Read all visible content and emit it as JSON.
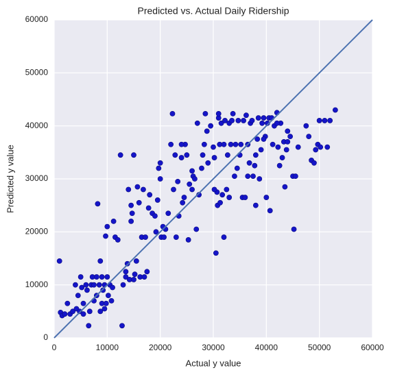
{
  "chart_data": {
    "type": "scatter",
    "title": "Predicted vs. Actual Daily Ridership",
    "x_label": "Actual y value",
    "y_label": "Predicted y value",
    "color": "#1515c8",
    "x": [
      1000,
      1200,
      1500,
      2000,
      2500,
      3000,
      3500,
      4000,
      4200,
      4500,
      4800,
      5000,
      5200,
      5500,
      5500,
      6000,
      6200,
      6500,
      6700,
      7000,
      7200,
      7500,
      7500,
      8000,
      8000,
      8200,
      8500,
      8700,
      8700,
      9000,
      9000,
      9200,
      9500,
      9500,
      9700,
      9800,
      10000,
      10000,
      10200,
      10500,
      10800,
      11000,
      11200,
      11500,
      12000,
      12500,
      12800,
      13000,
      13500,
      13500,
      13800,
      14000,
      14200,
      14500,
      14500,
      14700,
      15000,
      15000,
      15200,
      15500,
      15700,
      16000,
      16200,
      16500,
      16800,
      17000,
      17200,
      17500,
      17800,
      18000,
      18500,
      19000,
      19200,
      19500,
      19700,
      20000,
      20200,
      20500,
      20700,
      21000,
      21500,
      22000,
      22300,
      22500,
      22800,
      23000,
      23300,
      23500,
      24000,
      24200,
      24500,
      24700,
      25000,
      25300,
      25500,
      26000,
      26200,
      26500,
      26800,
      27000,
      27300,
      27800,
      28000,
      28300,
      28500,
      28800,
      29000,
      29500,
      30000,
      30200,
      30500,
      30700,
      30800,
      31000,
      31000,
      31200,
      31300,
      31500,
      31700,
      32000,
      32000,
      32200,
      32500,
      32700,
      33000,
      33300,
      33500,
      33700,
      34000,
      34200,
      34500,
      34700,
      35000,
      35200,
      35500,
      35700,
      36000,
      36200,
      36500,
      36800,
      37000,
      37300,
      37500,
      37800,
      38000,
      38000,
      38300,
      38500,
      38700,
      39000,
      39200,
      39500,
      39800,
      40000,
      40200,
      40500,
      40700,
      41000,
      41200,
      41500,
      42000,
      42200,
      42500,
      42700,
      43000,
      43300,
      43500,
      43800,
      44000,
      44500,
      45000,
      45200,
      45500,
      47500,
      48000,
      48500,
      49000,
      49300,
      49700,
      50000,
      50200,
      51000,
      51500,
      52000,
      53000,
      30200,
      33000,
      36500,
      39500,
      42000,
      44000,
      46000,
      24000,
      26000,
      20000
    ],
    "values": [
      14500,
      4800,
      4200,
      4500,
      6500,
      4500,
      5000,
      10000,
      5500,
      8000,
      5000,
      11500,
      9500,
      6500,
      4500,
      10000,
      9000,
      2300,
      5000,
      10000,
      11500,
      10000,
      7000,
      11500,
      8000,
      25300,
      10000,
      14500,
      5000,
      11500,
      6500,
      9000,
      10000,
      5500,
      19200,
      6500,
      11500,
      21000,
      8000,
      10000,
      7000,
      9500,
      22000,
      19000,
      18500,
      34500,
      2300,
      10000,
      12500,
      11500,
      14000,
      28000,
      11000,
      25000,
      22000,
      23500,
      34500,
      11000,
      12000,
      14500,
      28500,
      25500,
      11500,
      19000,
      28000,
      11500,
      19000,
      12500,
      24500,
      27000,
      23500,
      23000,
      20000,
      26000,
      32000,
      33000,
      19000,
      21000,
      19000,
      20500,
      23500,
      36500,
      42300,
      28000,
      34500,
      19000,
      29500,
      23000,
      34000,
      25500,
      26500,
      36500,
      34500,
      18500,
      29000,
      28000,
      30500,
      30000,
      20500,
      40500,
      27000,
      32000,
      34500,
      36500,
      42300,
      39000,
      33000,
      40000,
      36000,
      34000,
      16000,
      27500,
      25000,
      41500,
      42300,
      36500,
      25500,
      40500,
      27000,
      19000,
      36500,
      41000,
      28000,
      34500,
      40500,
      36500,
      41000,
      42300,
      30500,
      36500,
      32000,
      41000,
      34500,
      36500,
      26500,
      41000,
      26500,
      42000,
      36500,
      33000,
      40500,
      41000,
      30500,
      32500,
      25000,
      34500,
      37500,
      41500,
      30000,
      35500,
      40500,
      41500,
      38000,
      26500,
      40500,
      41500,
      24000,
      41500,
      36500,
      40000,
      42500,
      36000,
      32500,
      40500,
      34000,
      37000,
      28500,
      35500,
      39000,
      38000,
      30500,
      20500,
      30500,
      40000,
      38000,
      33500,
      33000,
      35500,
      36500,
      41000,
      36000,
      41000,
      36000,
      41000,
      43000,
      28000,
      26500,
      30500,
      37500,
      40500,
      37000,
      36000,
      36500,
      31500,
      30000
    ],
    "reference_line": {
      "x": [
        0,
        60000
      ],
      "y": [
        0,
        60000
      ],
      "color": "#4c72b0"
    },
    "xlim": [
      0,
      60000
    ],
    "ylim": [
      0,
      60000
    ],
    "xticks": [
      0,
      10000,
      20000,
      30000,
      40000,
      50000,
      60000
    ],
    "yticks": [
      0,
      10000,
      20000,
      30000,
      40000,
      50000,
      60000
    ],
    "grid": true
  }
}
